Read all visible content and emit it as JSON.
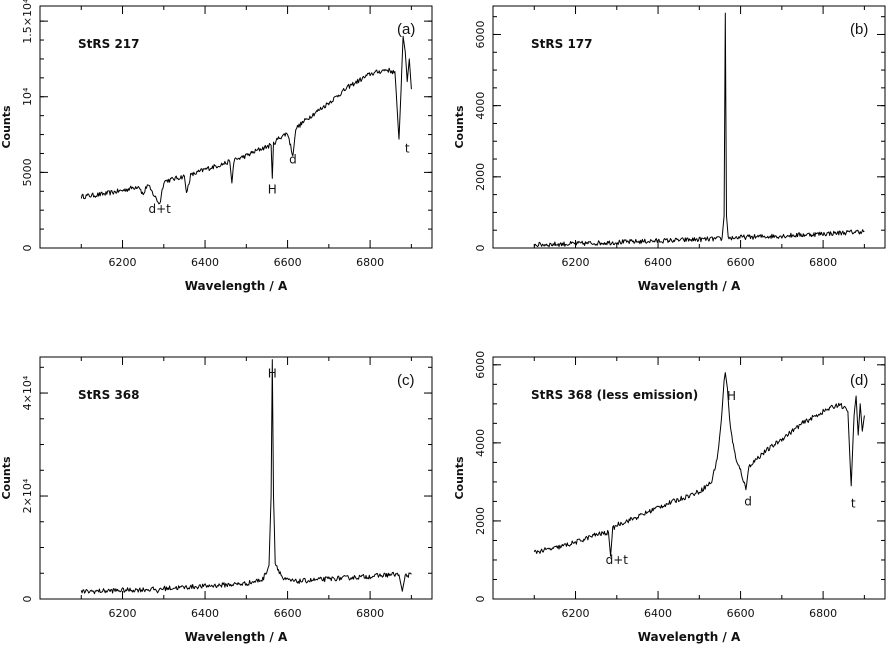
{
  "chart_data": [
    {
      "type": "line",
      "panel": "(a)",
      "title": "StRS 217",
      "xlabel": "Wavelength / A",
      "ylabel": "Counts",
      "xlim": [
        6000,
        6950
      ],
      "ylim": [
        0,
        16000
      ],
      "xticks": [
        6200,
        6400,
        6600,
        6800
      ],
      "yticks": [
        0,
        5000,
        10000,
        15000
      ],
      "ytick_labels": [
        "0",
        "5000",
        "10⁴",
        "1.5×10⁴"
      ],
      "series": [
        {
          "name": "StRS 217",
          "x": [
            6100,
            6150,
            6200,
            6240,
            6250,
            6260,
            6290,
            6300,
            6350,
            6355,
            6365,
            6400,
            6460,
            6465,
            6470,
            6500,
            6530,
            6560,
            6563,
            6566,
            6580,
            6600,
            6613,
            6620,
            6650,
            6700,
            6750,
            6800,
            6840,
            6860,
            6870,
            6875,
            6880,
            6885,
            6890,
            6895,
            6900
          ],
          "y": [
            3400,
            3550,
            3800,
            4100,
            3500,
            4200,
            2900,
            4400,
            4750,
            3600,
            4800,
            5200,
            5700,
            4300,
            5800,
            6100,
            6500,
            6800,
            4600,
            6900,
            7300,
            7600,
            6100,
            7900,
            8600,
            9600,
            10700,
            11500,
            11800,
            11600,
            7200,
            10500,
            14000,
            13000,
            11000,
            12500,
            10500
          ]
        }
      ],
      "annotations": [
        {
          "text": "d+t",
          "x": 6290,
          "y": 2300
        },
        {
          "text": "H",
          "x": 6563,
          "y": 3600
        },
        {
          "text": "d",
          "x": 6613,
          "y": 5600
        },
        {
          "text": "t",
          "x": 6890,
          "y": 6300
        }
      ]
    },
    {
      "type": "line",
      "panel": "(b)",
      "title": "StRS 177",
      "xlabel": "Wavelength / A",
      "ylabel": "Counts",
      "xlim": [
        6000,
        6950
      ],
      "ylim": [
        0,
        6800
      ],
      "xticks": [
        6200,
        6400,
        6600,
        6800
      ],
      "yticks": [
        0,
        2000,
        4000,
        6000
      ],
      "ytick_labels": [
        "0",
        "2000",
        "4000",
        "6000"
      ],
      "series": [
        {
          "name": "StRS 177",
          "x": [
            6100,
            6200,
            6300,
            6400,
            6500,
            6555,
            6560,
            6563,
            6566,
            6570,
            6600,
            6700,
            6800,
            6850,
            6900
          ],
          "y": [
            90,
            120,
            160,
            200,
            240,
            260,
            900,
            6600,
            900,
            280,
            300,
            340,
            400,
            430,
            470
          ]
        }
      ],
      "annotations": []
    },
    {
      "type": "line",
      "panel": "(c)",
      "title": "StRS 368",
      "xlabel": "Wavelength / A",
      "ylabel": "Counts",
      "xlim": [
        6000,
        6950
      ],
      "ylim": [
        0,
        47000
      ],
      "xticks": [
        6200,
        6400,
        6600,
        6800
      ],
      "yticks": [
        0,
        20000,
        40000
      ],
      "ytick_labels": [
        "0",
        "2×10⁴",
        "4×10⁴"
      ],
      "series": [
        {
          "name": "StRS 368",
          "x": [
            6100,
            6200,
            6280,
            6285,
            6290,
            6400,
            6500,
            6540,
            6555,
            6560,
            6563,
            6566,
            6570,
            6590,
            6620,
            6700,
            6800,
            6860,
            6870,
            6878,
            6885,
            6900
          ],
          "y": [
            1400,
            1700,
            1900,
            1200,
            2000,
            2500,
            3000,
            3800,
            6500,
            20000,
            46500,
            20000,
            7000,
            3800,
            3400,
            3900,
            4400,
            4800,
            4700,
            1500,
            4500,
            4800
          ]
        }
      ],
      "annotations": [
        {
          "text": "H",
          "x": 6563,
          "y": 43000
        }
      ]
    },
    {
      "type": "line",
      "panel": "(d)",
      "title": "StRS 368 (less emission)",
      "xlabel": "Wavelength / A",
      "ylabel": "Counts",
      "xlim": [
        6000,
        6950
      ],
      "ylim": [
        0,
        6200
      ],
      "xticks": [
        6200,
        6400,
        6600,
        6800
      ],
      "yticks": [
        0,
        2000,
        4000,
        6000
      ],
      "ytick_labels": [
        "0",
        "2000",
        "4000",
        "6000"
      ],
      "series": [
        {
          "name": "StRS 368 (less emission)",
          "x": [
            6100,
            6150,
            6200,
            6250,
            6280,
            6285,
            6290,
            6300,
            6350,
            6400,
            6450,
            6500,
            6530,
            6545,
            6555,
            6560,
            6563,
            6568,
            6575,
            6590,
            6600,
            6613,
            6620,
            6650,
            6700,
            6750,
            6800,
            6840,
            6860,
            6868,
            6875,
            6880,
            6885,
            6890,
            6895,
            6900
          ],
          "y": [
            1200,
            1300,
            1450,
            1650,
            1700,
            1100,
            1800,
            1900,
            2100,
            2350,
            2550,
            2750,
            3000,
            3700,
            4800,
            5600,
            5800,
            5400,
            4400,
            3500,
            3300,
            2800,
            3400,
            3700,
            4100,
            4500,
            4800,
            5000,
            4800,
            2900,
            4700,
            5200,
            4200,
            5000,
            4300,
            4700
          ]
        }
      ],
      "annotations": [
        {
          "text": "H",
          "x": 6578,
          "y": 5100
        },
        {
          "text": "d",
          "x": 6618,
          "y": 2400
        },
        {
          "text": "t",
          "x": 6873,
          "y": 2350
        },
        {
          "text": "d+t",
          "x": 6300,
          "y": 900
        }
      ]
    }
  ]
}
